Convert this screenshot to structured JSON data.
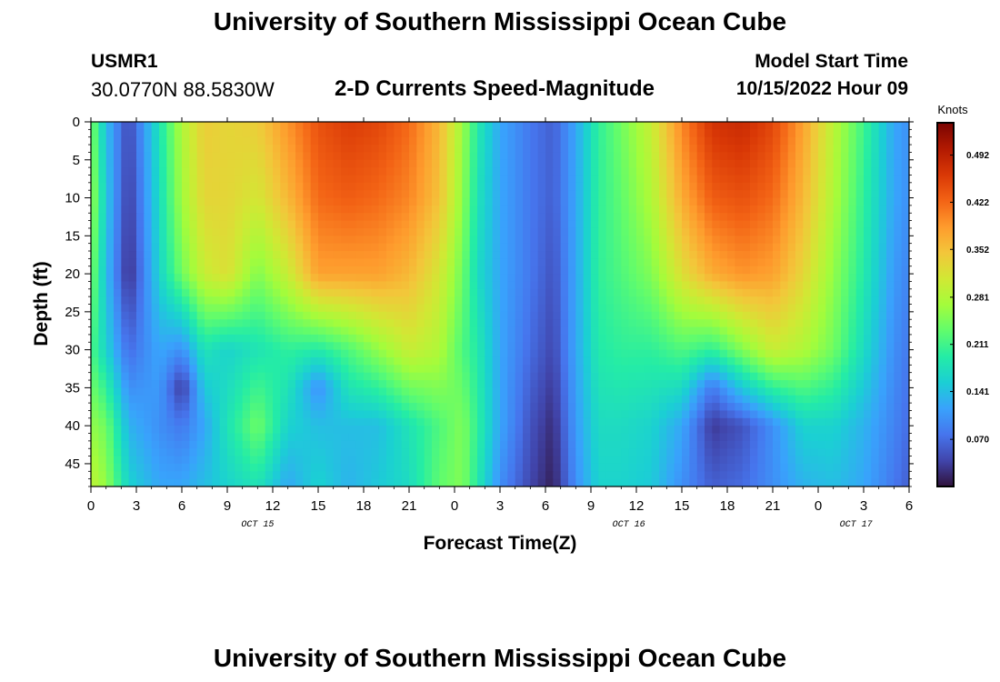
{
  "header": {
    "title": "University of Southern Mississippi Ocean Cube",
    "station": "USMR1",
    "coords": "30.0770N  88.5830W",
    "product": "2-D Currents Speed-Magnitude",
    "model_start_label": "Model Start Time",
    "model_start_value": "10/15/2022 Hour 09"
  },
  "footer": {
    "title": "University of Southern Mississippi Ocean Cube"
  },
  "colors": {
    "colormap": [
      "#30123b",
      "#4145ab",
      "#4675ed",
      "#39a2fc",
      "#1bcfd4",
      "#24eca6",
      "#61fc6c",
      "#a4fc3b",
      "#d1e834",
      "#f3c63a",
      "#fe9b2d",
      "#f36315",
      "#d93806",
      "#b11901",
      "#7a0402"
    ]
  },
  "chart_data": {
    "type": "heatmap",
    "xlabel": "Forecast Time(Z)",
    "ylabel": "Depth (ft)",
    "x_tick_labels": [
      "0",
      "3",
      "6",
      "9",
      "12",
      "15",
      "18",
      "21",
      "0",
      "3",
      "6",
      "9",
      "12",
      "15",
      "18",
      "21",
      "0",
      "3",
      "6"
    ],
    "x_range_hours": [
      0,
      54
    ],
    "date_labels": [
      {
        "label": "OCT 15",
        "hour": 11
      },
      {
        "label": "OCT 16",
        "hour": 35.5
      },
      {
        "label": "OCT 17",
        "hour": 50.5
      }
    ],
    "y_tick_labels": [
      "0",
      "5",
      "10",
      "15",
      "20",
      "25",
      "30",
      "35",
      "40",
      "45"
    ],
    "ylim": [
      0,
      48
    ],
    "y_inverted": true,
    "colorbar": {
      "title": "Knots",
      "ticks": [
        "0.070",
        "0.141",
        "0.211",
        "0.281",
        "0.352",
        "0.422",
        "0.492"
      ],
      "range": [
        0.0,
        0.54
      ]
    },
    "profiles": [
      {
        "hour": 0,
        "depth": [
          0,
          10,
          20,
          30,
          40,
          48
        ],
        "speed": [
          0.25,
          0.27,
          0.25,
          0.22,
          0.26,
          0.29
        ]
      },
      {
        "hour": 1,
        "depth": [
          0,
          10,
          20,
          30,
          40,
          48
        ],
        "speed": [
          0.14,
          0.15,
          0.14,
          0.16,
          0.24,
          0.26
        ]
      },
      {
        "hour": 2.5,
        "depth": [
          0,
          10,
          20,
          30,
          40,
          48
        ],
        "speed": [
          0.04,
          0.03,
          0.02,
          0.07,
          0.13,
          0.16
        ]
      },
      {
        "hour": 4.5,
        "depth": [
          0,
          10,
          20,
          30,
          40,
          48
        ],
        "speed": [
          0.18,
          0.17,
          0.16,
          0.12,
          0.1,
          0.12
        ]
      },
      {
        "hour": 6,
        "depth": [
          0,
          10,
          20,
          30,
          35,
          40,
          48
        ],
        "speed": [
          0.28,
          0.27,
          0.24,
          0.1,
          0.03,
          0.08,
          0.12
        ]
      },
      {
        "hour": 7.5,
        "depth": [
          0,
          10,
          20,
          30,
          40,
          48
        ],
        "speed": [
          0.34,
          0.33,
          0.3,
          0.18,
          0.12,
          0.14
        ]
      },
      {
        "hour": 9,
        "depth": [
          0,
          10,
          20,
          30,
          40,
          48
        ],
        "speed": [
          0.33,
          0.33,
          0.32,
          0.16,
          0.18,
          0.16
        ]
      },
      {
        "hour": 11,
        "depth": [
          0,
          10,
          20,
          30,
          40,
          48
        ],
        "speed": [
          0.34,
          0.31,
          0.25,
          0.18,
          0.24,
          0.18
        ]
      },
      {
        "hour": 13,
        "depth": [
          0,
          10,
          20,
          30,
          40,
          48
        ],
        "speed": [
          0.39,
          0.36,
          0.3,
          0.2,
          0.16,
          0.12
        ]
      },
      {
        "hour": 15,
        "depth": [
          0,
          10,
          20,
          30,
          35,
          40,
          48
        ],
        "speed": [
          0.44,
          0.42,
          0.38,
          0.19,
          0.1,
          0.14,
          0.16
        ]
      },
      {
        "hour": 17,
        "depth": [
          0,
          10,
          20,
          30,
          40,
          48
        ],
        "speed": [
          0.46,
          0.43,
          0.38,
          0.22,
          0.14,
          0.13
        ]
      },
      {
        "hour": 19,
        "depth": [
          0,
          10,
          20,
          30,
          40,
          48
        ],
        "speed": [
          0.45,
          0.42,
          0.38,
          0.26,
          0.14,
          0.15
        ]
      },
      {
        "hour": 21,
        "depth": [
          0,
          10,
          20,
          30,
          40,
          48
        ],
        "speed": [
          0.42,
          0.4,
          0.36,
          0.3,
          0.18,
          0.17
        ]
      },
      {
        "hour": 23,
        "depth": [
          0,
          10,
          20,
          30,
          40,
          48
        ],
        "speed": [
          0.36,
          0.35,
          0.31,
          0.28,
          0.22,
          0.23
        ]
      },
      {
        "hour": 24.5,
        "depth": [
          0,
          10,
          20,
          30,
          40,
          48
        ],
        "speed": [
          0.27,
          0.26,
          0.24,
          0.22,
          0.25,
          0.25
        ]
      },
      {
        "hour": 25.5,
        "depth": [
          0,
          10,
          20,
          30,
          40,
          48
        ],
        "speed": [
          0.19,
          0.18,
          0.17,
          0.19,
          0.2,
          0.19
        ]
      },
      {
        "hour": 27,
        "depth": [
          0,
          10,
          20,
          30,
          40,
          48
        ],
        "speed": [
          0.12,
          0.12,
          0.12,
          0.12,
          0.12,
          0.1
        ]
      },
      {
        "hour": 29,
        "depth": [
          0,
          10,
          20,
          30,
          40,
          48
        ],
        "speed": [
          0.08,
          0.08,
          0.08,
          0.07,
          0.05,
          0.04
        ]
      },
      {
        "hour": 30.5,
        "depth": [
          0,
          10,
          20,
          30,
          40,
          48
        ],
        "speed": [
          0.06,
          0.06,
          0.05,
          0.04,
          0.02,
          0.01
        ]
      },
      {
        "hour": 32,
        "depth": [
          0,
          10,
          20,
          30,
          40,
          48
        ],
        "speed": [
          0.12,
          0.12,
          0.12,
          0.12,
          0.11,
          0.1
        ]
      },
      {
        "hour": 33.5,
        "depth": [
          0,
          10,
          20,
          30,
          40,
          48
        ],
        "speed": [
          0.2,
          0.2,
          0.2,
          0.19,
          0.17,
          0.16
        ]
      },
      {
        "hour": 35,
        "depth": [
          0,
          10,
          20,
          30,
          40,
          48
        ],
        "speed": [
          0.24,
          0.23,
          0.22,
          0.2,
          0.17,
          0.16
        ]
      },
      {
        "hour": 37,
        "depth": [
          0,
          10,
          20,
          30,
          40,
          48
        ],
        "speed": [
          0.3,
          0.28,
          0.25,
          0.2,
          0.16,
          0.15
        ]
      },
      {
        "hour": 39,
        "depth": [
          0,
          10,
          20,
          30,
          40,
          48
        ],
        "speed": [
          0.4,
          0.37,
          0.32,
          0.22,
          0.12,
          0.1
        ]
      },
      {
        "hour": 41,
        "depth": [
          0,
          10,
          20,
          30,
          35,
          40,
          48
        ],
        "speed": [
          0.47,
          0.43,
          0.37,
          0.2,
          0.08,
          0.03,
          0.06
        ]
      },
      {
        "hour": 43,
        "depth": [
          0,
          10,
          20,
          30,
          40,
          48
        ],
        "speed": [
          0.48,
          0.44,
          0.39,
          0.25,
          0.05,
          0.07
        ]
      },
      {
        "hour": 45,
        "depth": [
          0,
          10,
          20,
          30,
          40,
          48
        ],
        "speed": [
          0.45,
          0.42,
          0.38,
          0.3,
          0.1,
          0.1
        ]
      },
      {
        "hour": 47,
        "depth": [
          0,
          10,
          20,
          30,
          40,
          48
        ],
        "speed": [
          0.38,
          0.36,
          0.33,
          0.28,
          0.16,
          0.13
        ]
      },
      {
        "hour": 49,
        "depth": [
          0,
          10,
          20,
          30,
          40,
          48
        ],
        "speed": [
          0.29,
          0.28,
          0.26,
          0.24,
          0.16,
          0.14
        ]
      },
      {
        "hour": 51,
        "depth": [
          0,
          10,
          20,
          30,
          40,
          48
        ],
        "speed": [
          0.21,
          0.2,
          0.19,
          0.17,
          0.13,
          0.12
        ]
      },
      {
        "hour": 53,
        "depth": [
          0,
          10,
          20,
          30,
          40,
          48
        ],
        "speed": [
          0.12,
          0.12,
          0.11,
          0.1,
          0.09,
          0.08
        ]
      },
      {
        "hour": 54,
        "depth": [
          0,
          10,
          20,
          30,
          40,
          48
        ],
        "speed": [
          0.1,
          0.1,
          0.09,
          0.08,
          0.07,
          0.06
        ]
      }
    ]
  }
}
